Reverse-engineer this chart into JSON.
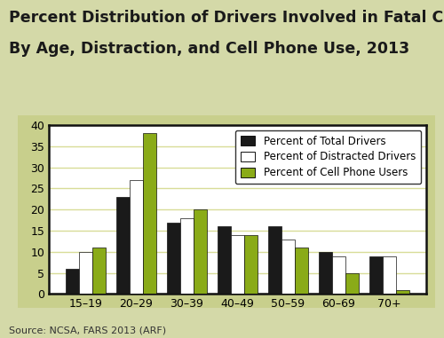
{
  "title_line1": "Percent Distribution of Drivers Involved in Fatal Crashes",
  "title_line2": "By Age, Distraction, and Cell Phone Use, 2013",
  "categories": [
    "15–19",
    "20–29",
    "30–39",
    "40–49",
    "50–59",
    "60–69",
    "70+"
  ],
  "series": {
    "total_drivers": [
      6,
      23,
      17,
      16,
      16,
      10,
      9
    ],
    "distracted_drivers": [
      10,
      27,
      18,
      14,
      13,
      9,
      9
    ],
    "cell_phone_users": [
      11,
      38,
      20,
      14,
      11,
      5,
      1
    ]
  },
  "colors": {
    "total_drivers": "#1a1a1a",
    "distracted_drivers": "#ffffff",
    "cell_phone_users": "#8aab18"
  },
  "legend_labels": [
    "Percent of Total Drivers",
    "Percent of Distracted Drivers",
    "Percent of Cell Phone Users"
  ],
  "ylim": [
    0,
    40
  ],
  "yticks": [
    0,
    5,
    10,
    15,
    20,
    25,
    30,
    35,
    40
  ],
  "outer_bg_color": "#d4d9a8",
  "plot_area_bg": "#ffffff",
  "chart_outer_bg": "#c8cf8c",
  "grid_color": "#d8dc98",
  "source_text": "Source: NCSA, FARS 2013 (ARF)",
  "title_fontsize": 12.5,
  "axis_fontsize": 9,
  "legend_fontsize": 8.5,
  "bar_width": 0.26
}
